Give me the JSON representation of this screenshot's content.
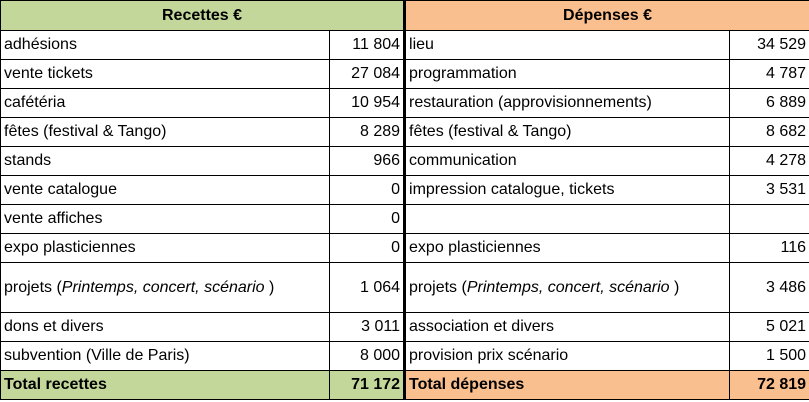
{
  "headers": {
    "recettes": "Recettes €",
    "depenses": "Dépenses €"
  },
  "rows": [
    {
      "recette_label": "adhésions",
      "recette_value": "11 804",
      "depense_label": "lieu",
      "depense_value": "34 529"
    },
    {
      "recette_label": "vente tickets",
      "recette_value": "27 084",
      "depense_label": "programmation",
      "depense_value": "4 787"
    },
    {
      "recette_label": "cafétéria",
      "recette_value": "10 954",
      "depense_label": "restauration (approvisionnements)",
      "depense_value": "6 889"
    },
    {
      "recette_label": "fêtes (festival & Tango)",
      "recette_value": "8 289",
      "depense_label": "fêtes (festival & Tango)",
      "depense_value": "8 682"
    },
    {
      "recette_label": "stands",
      "recette_value": "966",
      "depense_label": "communication",
      "depense_value": "4 278"
    },
    {
      "recette_label": "vente catalogue",
      "recette_value": "0",
      "depense_label": "impression catalogue, tickets",
      "depense_value": "3 531"
    },
    {
      "recette_label": "vente affiches",
      "recette_value": "0",
      "depense_label": "",
      "depense_value": ""
    },
    {
      "recette_label": "expo plasticiennes",
      "recette_value": "0",
      "depense_label": "expo plasticiennes",
      "depense_value": "116"
    }
  ],
  "projets": {
    "prefix": "projets (",
    "italic": "Printemps, concert, scénario",
    "suffix": " )",
    "recette_value": "1 064",
    "depense_value": "3 486"
  },
  "rows_after": [
    {
      "recette_label": "dons et divers",
      "recette_value": "3 011",
      "depense_label": "association et divers",
      "depense_value": "5 021"
    },
    {
      "recette_label": "subvention (Ville de Paris)",
      "recette_value": "8 000",
      "depense_label": "provision prix scénario",
      "depense_value": "1 500"
    }
  ],
  "totals": {
    "recettes_label": "Total recettes",
    "recettes_value": "71 172",
    "depenses_label": "Total dépenses",
    "depenses_value": "72 819"
  },
  "colors": {
    "recettes_accent": "#c4d79b",
    "depenses_accent": "#fabf8f"
  }
}
